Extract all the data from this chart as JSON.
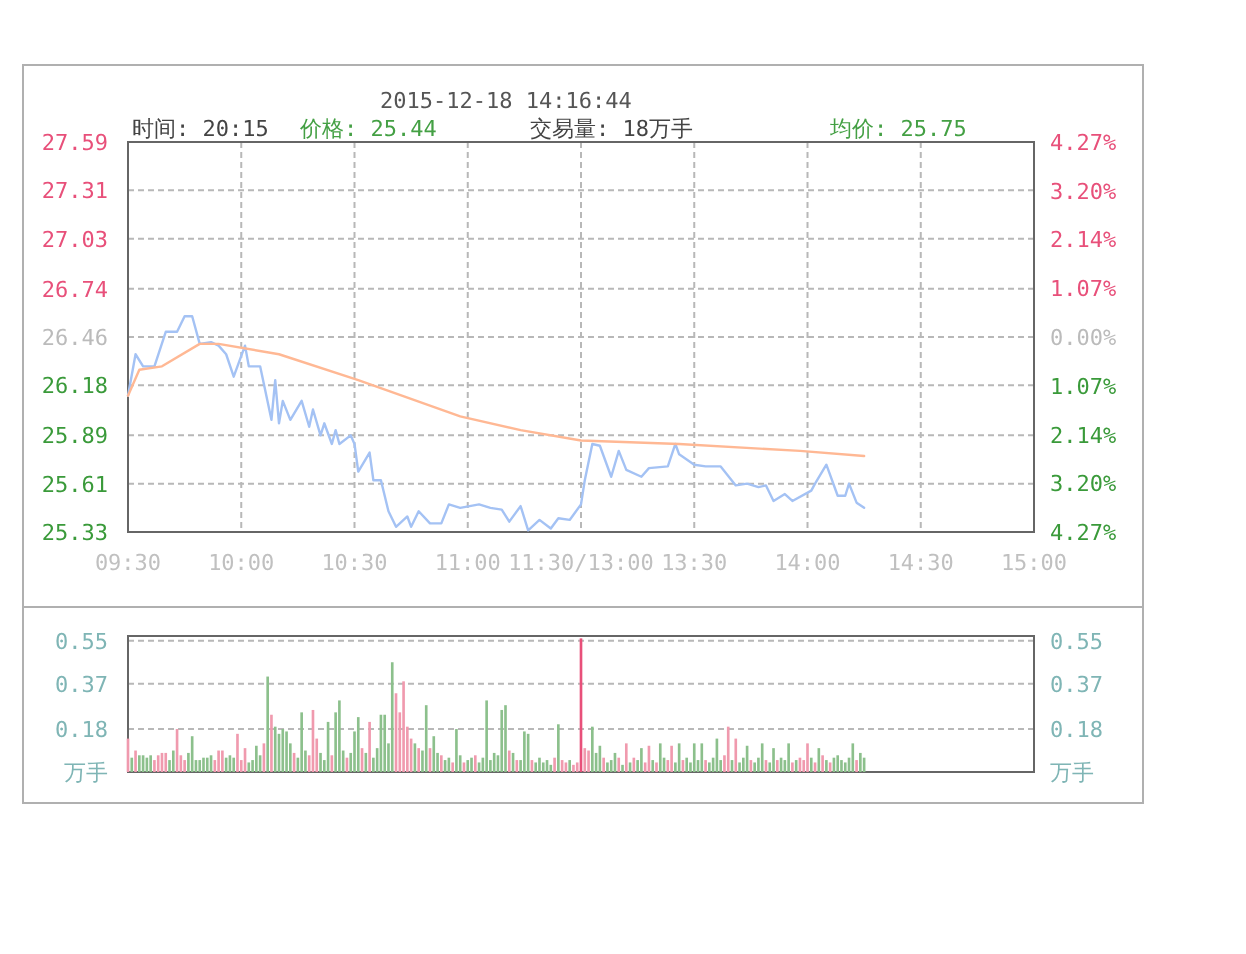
{
  "chart_data": [
    {
      "type": "line",
      "title": "2015-12-18 14:16:44",
      "annotations": [
        "时间: 20:15",
        "价格: 25.44",
        "交易量: 18万手",
        "均价: 25.75"
      ],
      "categories": [
        "09:30",
        null,
        null,
        null,
        null,
        null,
        null,
        null,
        null,
        null,
        null,
        null,
        null,
        null,
        null,
        null,
        null,
        null,
        null,
        null,
        null,
        null,
        null,
        null,
        null,
        null,
        null,
        null,
        null,
        null,
        "10:00",
        null,
        null,
        null,
        null,
        null,
        null,
        null,
        null,
        null,
        null,
        null,
        null,
        null,
        null,
        null,
        null,
        null,
        null,
        null,
        null,
        null,
        null,
        null,
        null,
        null,
        null,
        null,
        null,
        null,
        "10:30",
        null,
        null,
        null,
        null,
        null,
        null,
        null,
        null,
        null,
        null,
        null,
        null,
        null,
        null,
        null,
        null,
        null,
        null,
        null,
        null,
        null,
        null,
        null,
        null,
        null,
        null,
        null,
        null,
        null,
        "11:00",
        null,
        null,
        null,
        null,
        null,
        null,
        null,
        null,
        null,
        null,
        null,
        null,
        null,
        null,
        null,
        null,
        null,
        null,
        null,
        null,
        null,
        null,
        null,
        null,
        null,
        null,
        null,
        null,
        null,
        "11:30/13:00",
        null,
        null,
        null,
        null,
        null,
        null,
        null,
        null,
        null,
        null,
        null,
        null,
        null,
        null,
        null,
        null,
        null,
        null,
        null,
        null,
        null,
        null,
        null,
        null,
        null,
        null,
        null,
        null,
        null,
        "13:30",
        null,
        null,
        null,
        null,
        null,
        null,
        null,
        null,
        null,
        null,
        null,
        null,
        null,
        null,
        null,
        null,
        null,
        null,
        null,
        null,
        null,
        null,
        null,
        null,
        null,
        null,
        null,
        null,
        null,
        "14:00",
        null,
        null,
        null,
        null,
        null,
        null,
        null,
        null,
        null,
        null,
        null,
        null,
        null,
        null,
        null,
        null,
        null,
        null,
        null,
        null,
        null,
        null,
        null,
        null,
        null,
        null,
        null,
        null,
        null,
        "14:30",
        null,
        null,
        null,
        null,
        null,
        null,
        null,
        null,
        null,
        null,
        null,
        null,
        null,
        null,
        null,
        null,
        null,
        null,
        null,
        null,
        null,
        null,
        null,
        null,
        null,
        null,
        null,
        null,
        null,
        "15:00"
      ],
      "ylim": [
        25.33,
        27.59
      ],
      "yticks": [
        25.33,
        25.61,
        25.89,
        26.18,
        26.46,
        26.74,
        27.03,
        27.31,
        27.59
      ],
      "y2lim": [
        -4.27,
        4.27
      ],
      "y2ticks": [
        {
          "value": -4.27,
          "label": "4.27%"
        },
        {
          "value": -3.2,
          "label": "3.20%"
        },
        {
          "value": -2.14,
          "label": "2.14%"
        },
        {
          "value": -1.07,
          "label": "1.07%"
        },
        {
          "value": 0,
          "label": "0.00%"
        },
        {
          "value": 1.07,
          "label": "1.07%"
        },
        {
          "value": 2.14,
          "label": "2.14%"
        },
        {
          "value": 3.2,
          "label": "3.20%"
        },
        {
          "value": 4.27,
          "label": "4.27%"
        }
      ],
      "grid": true,
      "series": [
        {
          "color": "#a4c2f4",
          "values": [
            26.12,
            null,
            26.36,
            null,
            26.29,
            null,
            null,
            26.29,
            null,
            null,
            26.49,
            null,
            null,
            26.49,
            null,
            26.58,
            null,
            26.58,
            null,
            26.42,
            null,
            null,
            26.43,
            null,
            26.41,
            null,
            26.36,
            null,
            26.23,
            null,
            null,
            26.41,
            26.29,
            null,
            null,
            26.29,
            null,
            null,
            25.98,
            26.21,
            25.96,
            26.09,
            null,
            25.98,
            null,
            null,
            26.09,
            null,
            25.94,
            26.04,
            null,
            25.89,
            25.96,
            null,
            25.84,
            25.92,
            25.84,
            null,
            null,
            25.89,
            25.84,
            25.68,
            null,
            null,
            25.79,
            25.63,
            null,
            25.63,
            null,
            25.45,
            null,
            25.36,
            null,
            null,
            25.42,
            25.36,
            null,
            25.45,
            null,
            null,
            25.38,
            null,
            null,
            25.38,
            null,
            25.49,
            null,
            null,
            25.47,
            null,
            null,
            null,
            null,
            25.49,
            null,
            null,
            25.47,
            null,
            null,
            25.46,
            null,
            25.39,
            null,
            null,
            25.48,
            null,
            25.34,
            null,
            null,
            25.4,
            null,
            null,
            25.35,
            null,
            25.41,
            null,
            null,
            25.4,
            null,
            null,
            25.49,
            25.63,
            null,
            25.84,
            null,
            25.83,
            null,
            null,
            25.65,
            null,
            25.8,
            null,
            25.69,
            null,
            null,
            null,
            25.65,
            null,
            25.7,
            null,
            null,
            null,
            null,
            25.71,
            null,
            25.84,
            25.78,
            null,
            null,
            null,
            25.72,
            null,
            null,
            25.71,
            null,
            null,
            null,
            25.71,
            null,
            null,
            null,
            25.6,
            null,
            null,
            25.61,
            null,
            null,
            25.59,
            null,
            25.6,
            null,
            25.51,
            null,
            null,
            25.55,
            null,
            25.51,
            null,
            null,
            null,
            null,
            25.57,
            25.61,
            null,
            null,
            25.72,
            null,
            null,
            25.54,
            null,
            25.54,
            25.61,
            null,
            25.5,
            null,
            25.47,
            null,
            null,
            null,
            null,
            null,
            null,
            null,
            null,
            null,
            null,
            null,
            null,
            null,
            null,
            null,
            null,
            null,
            null,
            null,
            null,
            null,
            null,
            null,
            null,
            null,
            null,
            null,
            null,
            null,
            null,
            null,
            null,
            null,
            null,
            null,
            null,
            null,
            null,
            null,
            null,
            null,
            null,
            null,
            null,
            null
          ]
        },
        {
          "color": "#ffb894",
          "values": [
            26.12,
            null,
            null,
            26.27,
            null,
            null,
            null,
            null,
            null,
            26.29,
            null,
            null,
            null,
            null,
            null,
            null,
            null,
            null,
            null,
            26.42,
            null,
            null,
            null,
            null,
            26.42,
            null,
            null,
            null,
            null,
            null,
            null,
            null,
            null,
            null,
            null,
            null,
            null,
            null,
            null,
            null,
            26.36,
            null,
            null,
            null,
            null,
            null,
            null,
            null,
            null,
            null,
            null,
            null,
            null,
            null,
            null,
            null,
            null,
            null,
            null,
            null,
            null,
            26.21,
            null,
            null,
            null,
            null,
            null,
            null,
            null,
            null,
            null,
            null,
            null,
            null,
            null,
            null,
            null,
            null,
            null,
            null,
            null,
            null,
            null,
            null,
            null,
            null,
            null,
            null,
            26.0,
            null,
            null,
            null,
            null,
            null,
            null,
            null,
            null,
            null,
            null,
            null,
            null,
            null,
            null,
            null,
            25.92,
            null,
            null,
            null,
            null,
            null,
            null,
            null,
            null,
            null,
            null,
            null,
            null,
            null,
            null,
            null,
            25.86,
            null,
            null,
            null,
            null,
            null,
            null,
            null,
            null,
            null,
            null,
            null,
            null,
            null,
            null,
            null,
            null,
            null,
            null,
            null,
            null,
            null,
            null,
            null,
            null,
            null,
            25.84,
            null,
            null,
            null,
            null,
            null,
            null,
            null,
            null,
            null,
            null,
            null,
            null,
            null,
            null,
            null,
            null,
            null,
            null,
            null,
            null,
            null,
            null,
            null,
            null,
            null,
            null,
            null,
            null,
            null,
            null,
            null,
            25.8,
            null,
            null,
            null,
            null,
            null,
            null,
            null,
            null,
            null,
            null,
            null,
            null,
            null,
            null,
            null,
            null,
            25.77,
            null,
            null,
            null,
            null,
            null,
            null,
            null,
            null,
            null,
            null,
            null,
            null,
            null,
            null,
            null,
            null,
            null,
            null,
            null,
            null,
            null,
            null,
            null,
            null,
            null,
            null,
            null,
            null,
            null,
            null,
            null,
            null,
            null,
            null,
            null,
            null,
            null,
            null,
            null,
            null,
            null,
            null,
            null,
            null,
            null
          ]
        }
      ]
    },
    {
      "type": "bar",
      "ylim": [
        0,
        0.57
      ],
      "yticks": [
        {
          "value": 0,
          "label": "万手"
        },
        0.18,
        0.37,
        0.55
      ],
      "y2lim": [
        0,
        0.57
      ],
      "y2ticks": [
        {
          "value": 0,
          "label": "万手"
        },
        0.18,
        0.37,
        0.55
      ],
      "grid": "y",
      "tick_labels": "y",
      "categories": [
        null,
        null,
        null,
        null,
        null,
        null,
        null,
        null,
        null,
        null,
        null,
        null,
        null,
        null,
        null,
        null,
        null,
        null,
        null,
        null,
        null,
        null,
        null,
        null,
        null,
        null,
        null,
        null,
        null,
        null,
        null,
        null,
        null,
        null,
        null,
        null,
        null,
        null,
        null,
        null,
        null,
        null,
        null,
        null,
        null,
        null,
        null,
        null,
        null,
        null,
        null,
        null,
        null,
        null,
        null,
        null,
        null,
        null,
        null,
        null,
        null,
        null,
        null,
        null,
        null,
        null,
        null,
        null,
        null,
        null,
        null,
        null,
        null,
        null,
        null,
        null,
        null,
        null,
        null,
        null,
        null,
        null,
        null,
        null,
        null,
        null,
        null,
        null,
        null,
        null,
        null,
        null,
        null,
        null,
        null,
        null,
        null,
        null,
        null,
        null,
        null,
        null,
        null,
        null,
        null,
        null,
        null,
        null,
        null,
        null,
        null,
        null,
        null,
        null,
        null,
        null,
        null,
        null,
        null,
        null,
        null,
        null,
        null,
        null,
        null,
        null,
        null,
        null,
        null,
        null,
        null,
        null,
        null,
        null,
        null,
        null,
        null,
        null,
        null,
        null,
        null,
        null,
        null,
        null,
        null,
        null,
        null,
        null,
        null,
        null,
        null,
        null,
        null,
        null,
        null,
        null,
        null,
        null,
        null,
        null,
        null,
        null,
        null,
        null,
        null,
        null,
        null,
        null,
        null,
        null,
        null,
        null,
        null,
        null,
        null,
        null,
        null,
        null,
        null,
        null,
        null,
        null,
        null,
        null,
        null,
        null,
        null,
        null,
        null,
        null,
        null,
        null,
        null,
        null,
        null,
        null,
        null,
        null,
        null,
        null,
        null,
        null,
        null,
        null,
        null,
        null,
        null,
        null,
        null,
        null,
        null,
        null,
        null,
        null,
        null,
        null,
        null,
        null,
        null,
        null,
        null,
        null,
        null,
        null,
        null,
        null,
        null,
        null,
        null,
        null,
        null,
        null,
        null,
        null,
        null,
        null,
        null,
        null,
        null,
        null,
        null
      ],
      "values": [
        0.14,
        0.06,
        0.09,
        0.07,
        0.07,
        0.06,
        0.07,
        0.05,
        0.07,
        0.08,
        0.08,
        0.05,
        0.09,
        0.18,
        0.07,
        0.05,
        0.08,
        0.15,
        0.05,
        0.05,
        0.06,
        0.06,
        0.07,
        0.05,
        0.09,
        0.09,
        0.06,
        0.07,
        0.06,
        0.16,
        0.05,
        0.1,
        0.04,
        0.05,
        0.11,
        0.07,
        0.12,
        0.4,
        0.24,
        0.19,
        0.16,
        0.18,
        0.17,
        0.12,
        0.08,
        0.06,
        0.25,
        0.09,
        0.07,
        0.26,
        0.14,
        0.08,
        0.05,
        0.21,
        0.07,
        0.25,
        0.3,
        0.09,
        0.06,
        0.08,
        0.17,
        0.23,
        0.1,
        0.08,
        0.21,
        0.06,
        0.1,
        0.24,
        0.24,
        0.12,
        0.46,
        0.33,
        0.25,
        0.38,
        0.19,
        0.14,
        0.12,
        0.1,
        0.09,
        0.28,
        0.1,
        0.15,
        0.08,
        0.07,
        0.05,
        0.06,
        0.04,
        0.18,
        0.07,
        0.04,
        0.05,
        0.06,
        0.07,
        0.04,
        0.06,
        0.3,
        0.05,
        0.08,
        0.07,
        0.26,
        0.28,
        0.09,
        0.08,
        0.05,
        0.05,
        0.17,
        0.16,
        0.05,
        0.04,
        0.06,
        0.04,
        0.05,
        0.03,
        0.06,
        0.2,
        0.05,
        0.04,
        0.05,
        0.03,
        0.04,
        0.56,
        0.1,
        0.09,
        0.19,
        0.08,
        0.11,
        0.06,
        0.04,
        0.05,
        0.08,
        0.06,
        0.03,
        0.12,
        0.04,
        0.06,
        0.05,
        0.1,
        0.04,
        0.11,
        0.05,
        0.04,
        0.12,
        0.06,
        0.05,
        0.11,
        0.04,
        0.12,
        0.05,
        0.06,
        0.04,
        0.12,
        0.05,
        0.12,
        0.05,
        0.04,
        0.06,
        0.14,
        0.05,
        0.07,
        0.19,
        0.05,
        0.14,
        0.04,
        0.06,
        0.11,
        0.05,
        0.04,
        0.06,
        0.12,
        0.05,
        0.04,
        0.1,
        0.05,
        0.06,
        0.05,
        0.12,
        0.04,
        0.05,
        0.06,
        0.05,
        0.12,
        0.06,
        0.04,
        0.1,
        0.07,
        0.05,
        0.04,
        0.06,
        0.07,
        0.05,
        0.04,
        0.06,
        0.12,
        0.05,
        0.08,
        0.06,
        null,
        null,
        null,
        null,
        null,
        null,
        null,
        null,
        null,
        null,
        null,
        null,
        null,
        null,
        null,
        null,
        null,
        null,
        null,
        null,
        null,
        null,
        null,
        null,
        null,
        null,
        null,
        null,
        null,
        null,
        null,
        null,
        null,
        null,
        null,
        null,
        null,
        null,
        null,
        null,
        null,
        null,
        null,
        null,
        null
      ],
      "colors": [
        "#f09aae",
        "#8cc08c",
        "#f09aae",
        "#8cc08c",
        "#8cc08c",
        "#8cc08c",
        "#8cc08c",
        "#f09aae",
        "#f09aae",
        "#f09aae",
        "#f09aae",
        "#8cc08c",
        "#8cc08c",
        "#f09aae",
        "#f09aae",
        "#f09aae",
        "#8cc08c",
        "#8cc08c",
        "#8cc08c",
        "#8cc08c",
        "#8cc08c",
        "#8cc08c",
        "#8cc08c",
        "#f09aae",
        "#f09aae",
        "#f09aae",
        "#8cc08c",
        "#8cc08c",
        "#8cc08c",
        "#f09aae",
        "#f09aae",
        "#f09aae",
        "#8cc08c",
        "#8cc08c",
        "#8cc08c",
        "#8cc08c",
        "#f09aae",
        "#8cc08c",
        "#f09aae",
        "#8cc08c",
        "#8cc08c",
        "#8cc08c",
        "#8cc08c",
        "#8cc08c",
        "#f09aae",
        "#8cc08c",
        "#8cc08c",
        "#8cc08c",
        "#f09aae",
        "#f09aae",
        "#f09aae",
        "#8cc08c",
        "#8cc08c",
        "#8cc08c",
        "#f09aae",
        "#8cc08c",
        "#8cc08c",
        "#8cc08c",
        "#f09aae",
        "#8cc08c",
        "#8cc08c",
        "#8cc08c",
        "#f09aae",
        "#8cc08c",
        "#f09aae",
        "#8cc08c",
        "#8cc08c",
        "#8cc08c",
        "#8cc08c",
        "#8cc08c",
        "#8cc08c",
        "#f09aae",
        "#f09aae",
        "#f09aae",
        "#f09aae",
        "#f09aae",
        "#8cc08c",
        "#f09aae",
        "#8cc08c",
        "#8cc08c",
        "#f09aae",
        "#8cc08c",
        "#8cc08c",
        "#f09aae",
        "#8cc08c",
        "#8cc08c",
        "#f09aae",
        "#8cc08c",
        "#8cc08c",
        "#f09aae",
        "#8cc08c",
        "#8cc08c",
        "#f09aae",
        "#8cc08c",
        "#8cc08c",
        "#8cc08c",
        "#8cc08c",
        "#8cc08c",
        "#8cc08c",
        "#8cc08c",
        "#8cc08c",
        "#f09aae",
        "#8cc08c",
        "#f09aae",
        "#8cc08c",
        "#8cc08c",
        "#8cc08c",
        "#f09aae",
        "#8cc08c",
        "#8cc08c",
        "#8cc08c",
        "#8cc08c",
        "#8cc08c",
        "#f09aae",
        "#8cc08c",
        "#f09aae",
        "#f09aae",
        "#8cc08c",
        "#f09aae",
        "#f09aae",
        "#e8507a",
        "#f09aae",
        "#f09aae",
        "#8cc08c",
        "#8cc08c",
        "#8cc08c",
        "#f09aae",
        "#8cc08c",
        "#8cc08c",
        "#8cc08c",
        "#f09aae",
        "#8cc08c",
        "#f09aae",
        "#8cc08c",
        "#f09aae",
        "#8cc08c",
        "#8cc08c",
        "#f09aae",
        "#f09aae",
        "#8cc08c",
        "#f09aae",
        "#8cc08c",
        "#8cc08c",
        "#f09aae",
        "#f09aae",
        "#8cc08c",
        "#8cc08c",
        "#f09aae",
        "#8cc08c",
        "#8cc08c",
        "#8cc08c",
        "#8cc08c",
        "#8cc08c",
        "#f09aae",
        "#8cc08c",
        "#8cc08c",
        "#8cc08c",
        "#8cc08c",
        "#f09aae",
        "#f09aae",
        "#8cc08c",
        "#f09aae",
        "#8cc08c",
        "#8cc08c",
        "#8cc08c",
        "#f09aae",
        "#8cc08c",
        "#8cc08c",
        "#8cc08c",
        "#f09aae",
        "#8cc08c",
        "#8cc08c",
        "#f09aae",
        "#8cc08c",
        "#8cc08c",
        "#8cc08c",
        "#f09aae",
        "#8cc08c",
        "#f09aae",
        "#f09aae",
        "#f09aae",
        "#8cc08c",
        "#f09aae",
        "#8cc08c",
        "#f09aae",
        "#8cc08c",
        "#f09aae",
        "#8cc08c",
        "#8cc08c",
        "#8cc08c",
        "#8cc08c",
        "#8cc08c",
        "#8cc08c",
        "#f09aae",
        "#8cc08c",
        "#8cc08c",
        null,
        null,
        null,
        null,
        null,
        null,
        null,
        null,
        null,
        null,
        null,
        null,
        null,
        null,
        null,
        null,
        null,
        null,
        null,
        null,
        null,
        null,
        null,
        null,
        null,
        null,
        null,
        null,
        null,
        null,
        null,
        null,
        null,
        null,
        null,
        null,
        null,
        null,
        null,
        null,
        null,
        null,
        null,
        null,
        null
      ]
    }
  ]
}
